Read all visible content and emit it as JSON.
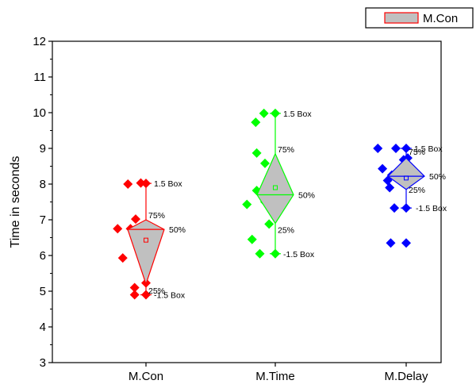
{
  "chart_data": {
    "type": "scatter",
    "title": "",
    "xlabel": "",
    "ylabel": "Time in seconds",
    "ylim": [
      3,
      12
    ],
    "yticks": [
      3,
      4,
      5,
      6,
      7,
      8,
      9,
      10,
      11,
      12
    ],
    "grid": false,
    "legend": {
      "position": "top-right",
      "entries": [
        "M.Con"
      ]
    },
    "categories": [
      "M.Con",
      "M.Time",
      "M.Delay"
    ],
    "series": [
      {
        "name": "M.Con",
        "color": "#ff0000",
        "points": [
          {
            "x": -0.55,
            "y": 6.75
          },
          {
            "x": -0.35,
            "y": 8.0
          },
          {
            "x": -0.3,
            "y": 6.75
          },
          {
            "x": -0.2,
            "y": 7.02
          },
          {
            "x": -0.45,
            "y": 5.93
          },
          {
            "x": -0.1,
            "y": 8.03
          },
          {
            "x": -0.08,
            "y": 6.37
          },
          {
            "x": 0.1,
            "y": 6.78
          },
          {
            "x": 0.0,
            "y": 5.23
          },
          {
            "x": -0.22,
            "y": 5.1
          },
          {
            "x": -0.22,
            "y": 4.9
          }
        ],
        "box": {
          "whisker_high": 8.02,
          "q3": 7.0,
          "median": 6.73,
          "q1": 5.2,
          "whisker_low": 4.9,
          "mean": 6.43
        },
        "annotations": {
          "whisker_high": "1.5 Box",
          "q3": "75%",
          "median": "50%",
          "q1": "25%",
          "whisker_low": "-1.5 Box"
        }
      },
      {
        "name": "M.Time",
        "color": "#00ff00",
        "points": [
          {
            "x": -0.55,
            "y": 7.43
          },
          {
            "x": -0.38,
            "y": 9.73
          },
          {
            "x": -0.22,
            "y": 9.98
          },
          {
            "x": -0.36,
            "y": 8.87
          },
          {
            "x": -0.2,
            "y": 8.58
          },
          {
            "x": -0.36,
            "y": 7.82
          },
          {
            "x": -0.05,
            "y": 7.7
          },
          {
            "x": -0.2,
            "y": 7.5
          },
          {
            "x": -0.45,
            "y": 6.45
          },
          {
            "x": -0.12,
            "y": 6.88
          },
          {
            "x": -0.3,
            "y": 6.05
          }
        ],
        "box": {
          "whisker_high": 9.98,
          "q3": 8.85,
          "median": 7.7,
          "q1": 6.9,
          "whisker_low": 6.05,
          "mean": 7.9
        },
        "annotations": {
          "whisker_high": "1.5 Box",
          "q3": "75%",
          "median": "50%",
          "q1": "25%",
          "whisker_low": "-1.5 Box"
        }
      },
      {
        "name": "M.Delay",
        "color": "#0000ff",
        "points": [
          {
            "x": -0.55,
            "y": 9.0
          },
          {
            "x": -0.2,
            "y": 9.0
          },
          {
            "x": -0.46,
            "y": 8.43
          },
          {
            "x": -0.28,
            "y": 8.25
          },
          {
            "x": -0.16,
            "y": 8.2
          },
          {
            "x": -0.36,
            "y": 8.1
          },
          {
            "x": -0.32,
            "y": 7.9
          },
          {
            "x": -0.05,
            "y": 8.68
          },
          {
            "x": 0.03,
            "y": 8.73
          },
          {
            "x": -0.23,
            "y": 7.33
          },
          {
            "x": -0.3,
            "y": 6.35
          }
        ],
        "box": {
          "whisker_high": 9.0,
          "q3": 8.73,
          "median": 8.22,
          "q1": 7.85,
          "whisker_low": 7.33,
          "mean": 8.17,
          "outlier_low": 6.35
        },
        "annotations": {
          "whisker_high": "1.5 Box",
          "q3": "75%",
          "median": "50%",
          "q1": "25%",
          "whisker_low": "-1.5 Box"
        }
      }
    ]
  }
}
